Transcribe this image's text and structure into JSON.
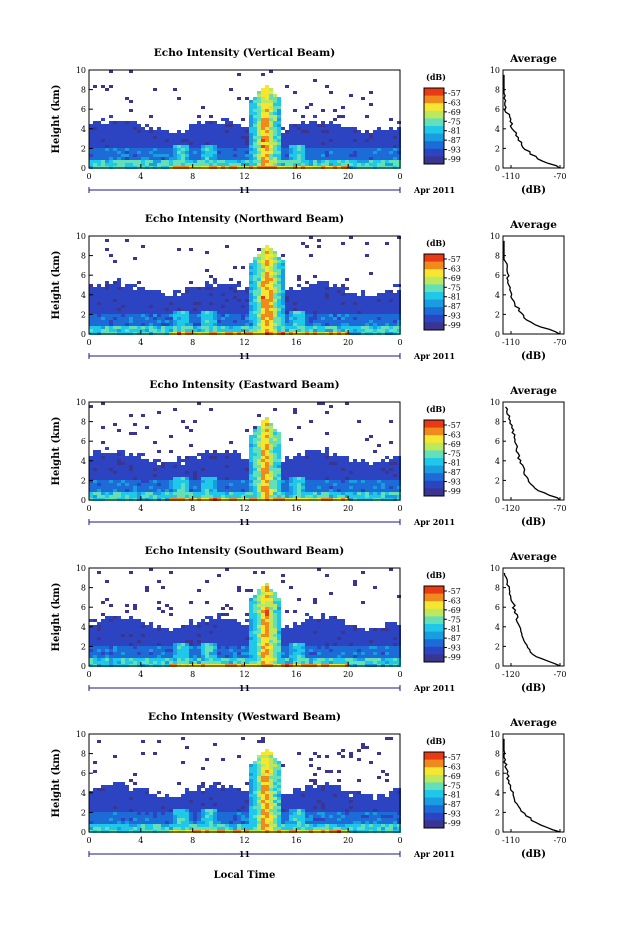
{
  "color_scale": {
    "unit": "(dB)",
    "labels": [
      "-57",
      "-63",
      "-69",
      "-75",
      "-81",
      "-87",
      "-93",
      "-99"
    ],
    "colors": [
      "#e83a14",
      "#f08a1c",
      "#f5e632",
      "#bde85e",
      "#63e0b8",
      "#1fc8e8",
      "#1a9de0",
      "#1d6bd6",
      "#2c44c2",
      "#3a3690"
    ]
  },
  "x_axis": {
    "ticks": [
      "0",
      "4",
      "8",
      "12",
      "16",
      "20",
      "0"
    ],
    "day_label": "11",
    "month_label": "Apr 2011",
    "xlabel": "Local Time"
  },
  "y_axis": {
    "ylabel": "Height (km)",
    "ticks": [
      "0",
      "2",
      "4",
      "6",
      "8",
      "10"
    ]
  },
  "avg_panel": {
    "title": "Average",
    "xlabel": "(dB)"
  },
  "chart_data": [
    {
      "type": "heatmap",
      "title": "Echo Intensity (Vertical Beam)",
      "xlabel": "Local Time",
      "ylabel": "Height (km)",
      "xlim": [
        0,
        24
      ],
      "ylim": [
        0,
        10
      ],
      "colorbar": {
        "label": "(dB)",
        "range": [
          -99,
          -57
        ]
      },
      "features": {
        "echo_top_km": 4.5,
        "storm_time_h": 13.5,
        "storm_top_km": 8.8,
        "sub_events_h": [
          7,
          9,
          16
        ]
      },
      "average_profile": {
        "xlim": [
          -110,
          -70
        ],
        "xticks": [
          "-110",
          "-70"
        ],
        "heights_km": [
          0,
          1,
          2,
          3,
          4,
          5,
          6,
          7,
          8,
          9
        ],
        "values_db": [
          -72,
          -88,
          -96,
          -100,
          -104,
          -106,
          -108,
          -109,
          -111,
          -113
        ]
      }
    },
    {
      "type": "heatmap",
      "title": "Echo Intensity (Northward Beam)",
      "xlabel": "Local Time",
      "ylabel": "Height (km)",
      "xlim": [
        0,
        24
      ],
      "ylim": [
        0,
        10
      ],
      "colorbar": {
        "label": "(dB)",
        "range": [
          -99,
          -57
        ]
      },
      "features": {
        "echo_top_km": 4.8,
        "storm_time_h": 13.6,
        "storm_top_km": 9.4,
        "sub_events_h": [
          7,
          9,
          16
        ]
      },
      "average_profile": {
        "xlim": [
          -110,
          -70
        ],
        "xticks": [
          "-110",
          "-70"
        ],
        "heights_km": [
          0,
          1,
          2,
          3,
          4,
          5,
          6,
          7,
          8,
          9
        ],
        "values_db": [
          -72,
          -90,
          -98,
          -102,
          -105,
          -106,
          -107,
          -108,
          -110,
          -112
        ]
      }
    },
    {
      "type": "heatmap",
      "title": "Echo Intensity (Eastward Beam)",
      "xlabel": "Local Time",
      "ylabel": "Height (km)",
      "xlim": [
        0,
        24
      ],
      "ylim": [
        0,
        10
      ],
      "colorbar": {
        "label": "(dB)",
        "range": [
          -99,
          -57
        ]
      },
      "features": {
        "echo_top_km": 4.6,
        "storm_time_h": 13.5,
        "storm_top_km": 8.6,
        "sub_events_h": [
          7,
          9,
          16
        ]
      },
      "average_profile": {
        "xlim": [
          -120,
          -70
        ],
        "xticks": [
          "-120",
          "-70"
        ],
        "heights_km": [
          0,
          1,
          2,
          3,
          4,
          5,
          6,
          7,
          8,
          9
        ],
        "values_db": [
          -72,
          -92,
          -100,
          -103,
          -106,
          -108,
          -110,
          -112,
          -114,
          -116
        ]
      }
    },
    {
      "type": "heatmap",
      "title": "Echo Intensity (Southward Beam)",
      "xlabel": "Local Time",
      "ylabel": "Height (km)",
      "xlim": [
        0,
        24
      ],
      "ylim": [
        0,
        10
      ],
      "colorbar": {
        "label": "(dB)",
        "range": [
          -99,
          -57
        ]
      },
      "features": {
        "echo_top_km": 4.6,
        "storm_time_h": 13.5,
        "storm_top_km": 8.7,
        "sub_events_h": [
          7,
          9,
          16
        ]
      },
      "average_profile": {
        "xlim": [
          -120,
          -70
        ],
        "xticks": [
          "-120",
          "-70"
        ],
        "heights_km": [
          0,
          1,
          2,
          3,
          4,
          5,
          6,
          7,
          8,
          9
        ],
        "values_db": [
          -72,
          -93,
          -101,
          -104,
          -107,
          -109,
          -111,
          -113,
          -115,
          -117
        ]
      }
    },
    {
      "type": "heatmap",
      "title": "Echo Intensity (Westward Beam)",
      "xlabel": "Local Time",
      "ylabel": "Height (km)",
      "xlim": [
        0,
        24
      ],
      "ylim": [
        0,
        10
      ],
      "colorbar": {
        "label": "(dB)",
        "range": [
          -99,
          -57
        ]
      },
      "features": {
        "echo_top_km": 4.4,
        "storm_time_h": 13.5,
        "storm_top_km": 8.8,
        "sub_events_h": [
          7,
          9,
          16
        ]
      },
      "average_profile": {
        "xlim": [
          -110,
          -70
        ],
        "xticks": [
          "-110",
          "-70"
        ],
        "heights_km": [
          0,
          1,
          2,
          3,
          4,
          5,
          6,
          7,
          8,
          9
        ],
        "values_db": [
          -73,
          -89,
          -97,
          -101,
          -104,
          -106,
          -107,
          -109,
          -110,
          -112
        ]
      }
    }
  ]
}
